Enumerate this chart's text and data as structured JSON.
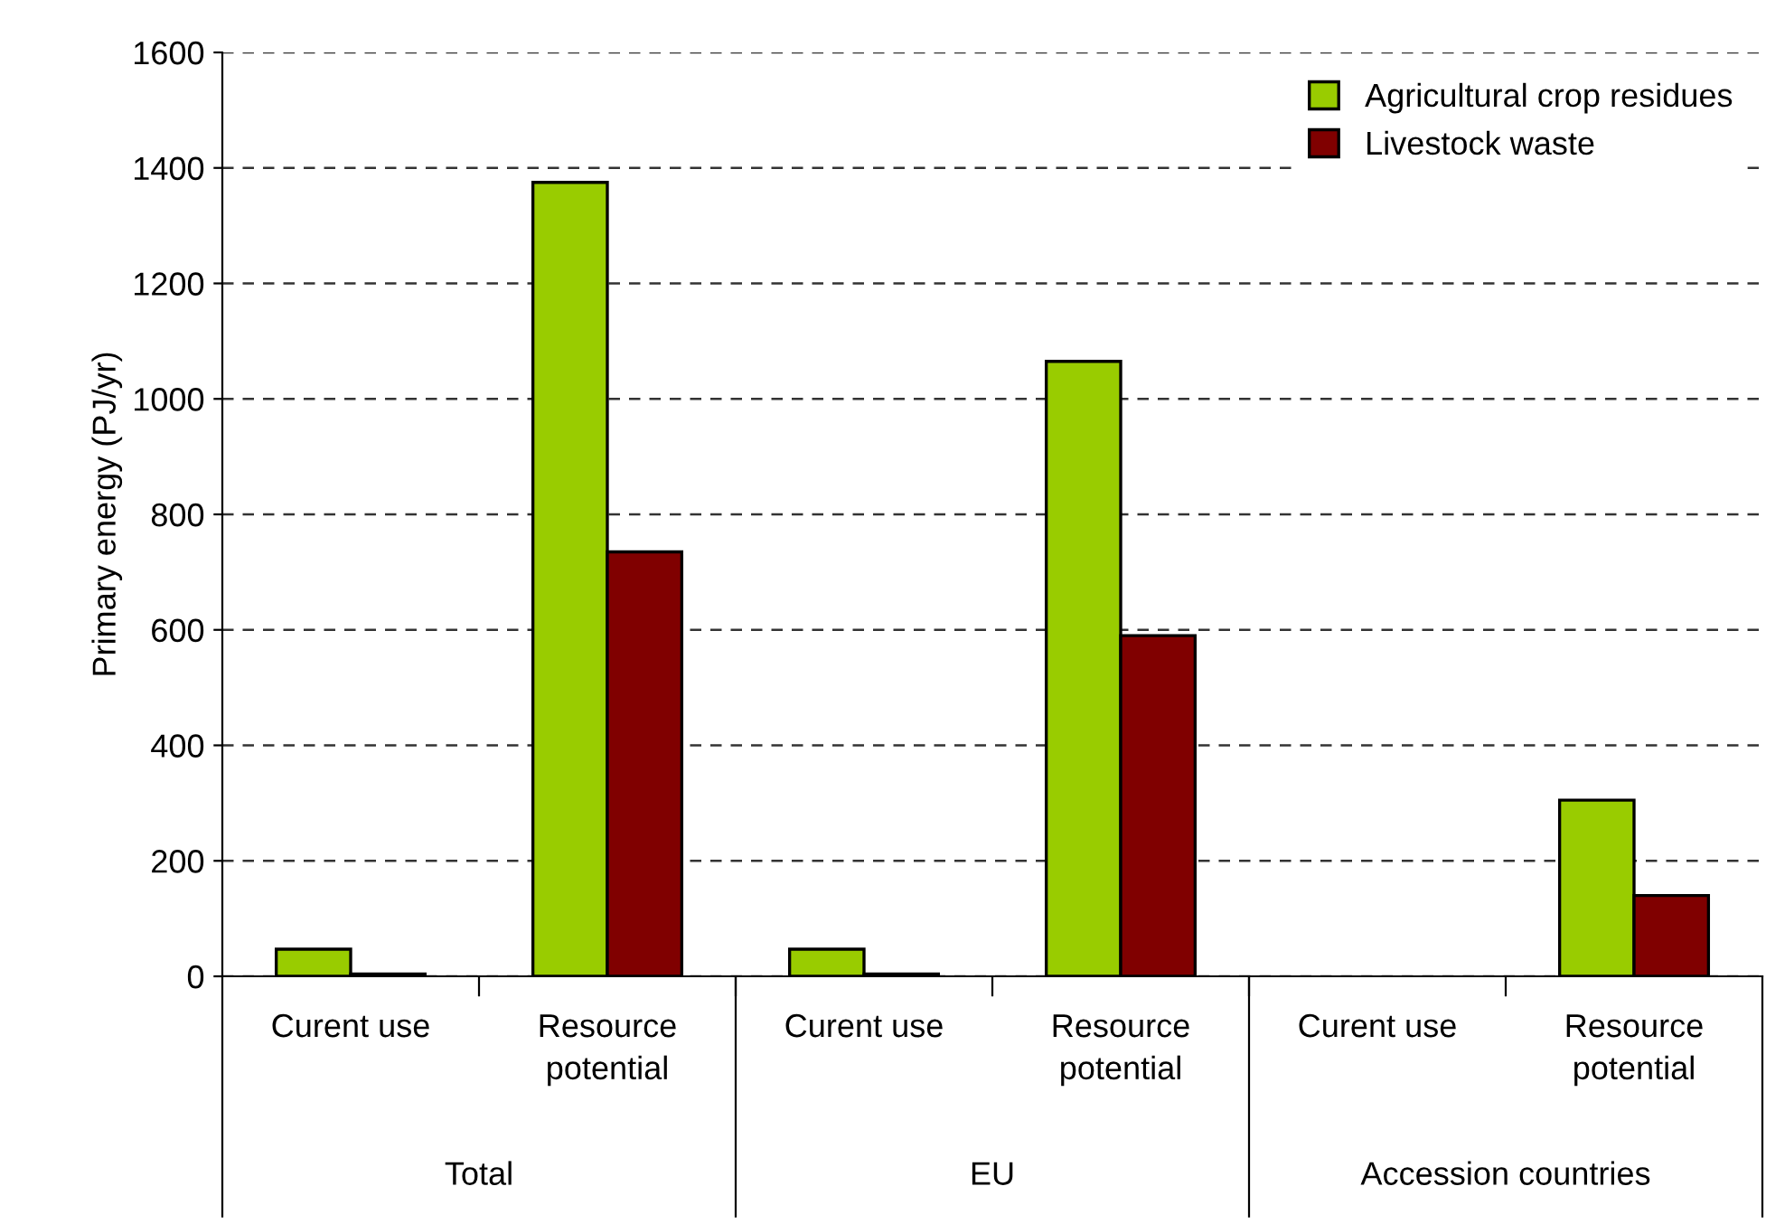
{
  "chart_data": {
    "type": "bar",
    "ylabel": "Primary energy (PJ/yr)",
    "categories": [
      "Curent use",
      "Resource\npotential",
      "Curent use",
      "Resource\npotential",
      "Curent use",
      "Resource\npotential"
    ],
    "annotations": [
      "Total",
      "EU",
      "Accession countries"
    ],
    "series": [
      {
        "name": "Agricultural crop residues",
        "color": "#99cc00",
        "values": [
          47,
          1375,
          47,
          1065,
          null,
          305
        ]
      },
      {
        "name": "Livestock waste",
        "color": "#800000",
        "values": [
          4,
          735,
          4,
          590,
          null,
          140
        ]
      }
    ],
    "ylim": [
      0,
      1600
    ],
    "yticks": [
      0,
      200,
      400,
      600,
      800,
      1000,
      1200,
      1400,
      1600
    ],
    "grid": "y",
    "legend": "top right"
  }
}
